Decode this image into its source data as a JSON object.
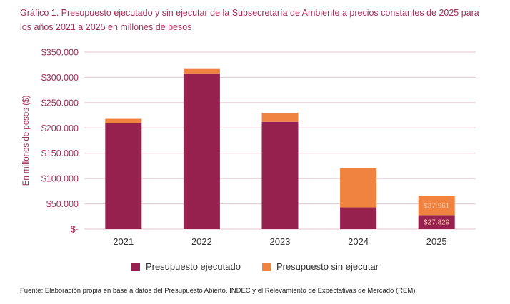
{
  "title_line1": "Gráfico 1. Presupuesto ejecutado y sin ejecutar de la Subsecretaría de Ambiente a precios constantes de 2025 para",
  "title_line2": "los años 2021 a 2025 en millones de pesos",
  "source": "Fuente: Elaboración propia en base a datos del Presupuesto Abierto, INDEC y el Relevamiento de Expectativas de Mercado (REM).",
  "colors": {
    "ejecutado": "#96214f",
    "sin_ejecutar": "#f08340",
    "grid": "#e4c5d0",
    "text": "#a0305a"
  },
  "chart_data": {
    "type": "bar",
    "stacked": true,
    "title": "",
    "xlabel": "",
    "ylabel": "En millones de pesos ($)",
    "categories": [
      "2021",
      "2022",
      "2023",
      "2024",
      "2025"
    ],
    "ylim": [
      0,
      350000
    ],
    "yticks": [
      0,
      50000,
      100000,
      150000,
      200000,
      250000,
      300000,
      350000
    ],
    "ytick_labels": [
      "$-",
      "$50.000",
      "$100.000",
      "$150.000",
      "$200.000",
      "$250.000",
      "$300.000",
      "$350.000"
    ],
    "series": [
      {
        "name": "Presupuesto ejecutado",
        "values": [
          210000,
          308000,
          212000,
          43000,
          27829
        ]
      },
      {
        "name": "Presupuesto sin ejecutar",
        "values": [
          8000,
          10000,
          18000,
          77000,
          37961
        ]
      }
    ],
    "data_labels": {
      "2025": [
        "$27.829",
        "$37.961"
      ]
    },
    "legend": "bottom",
    "grid": true
  }
}
